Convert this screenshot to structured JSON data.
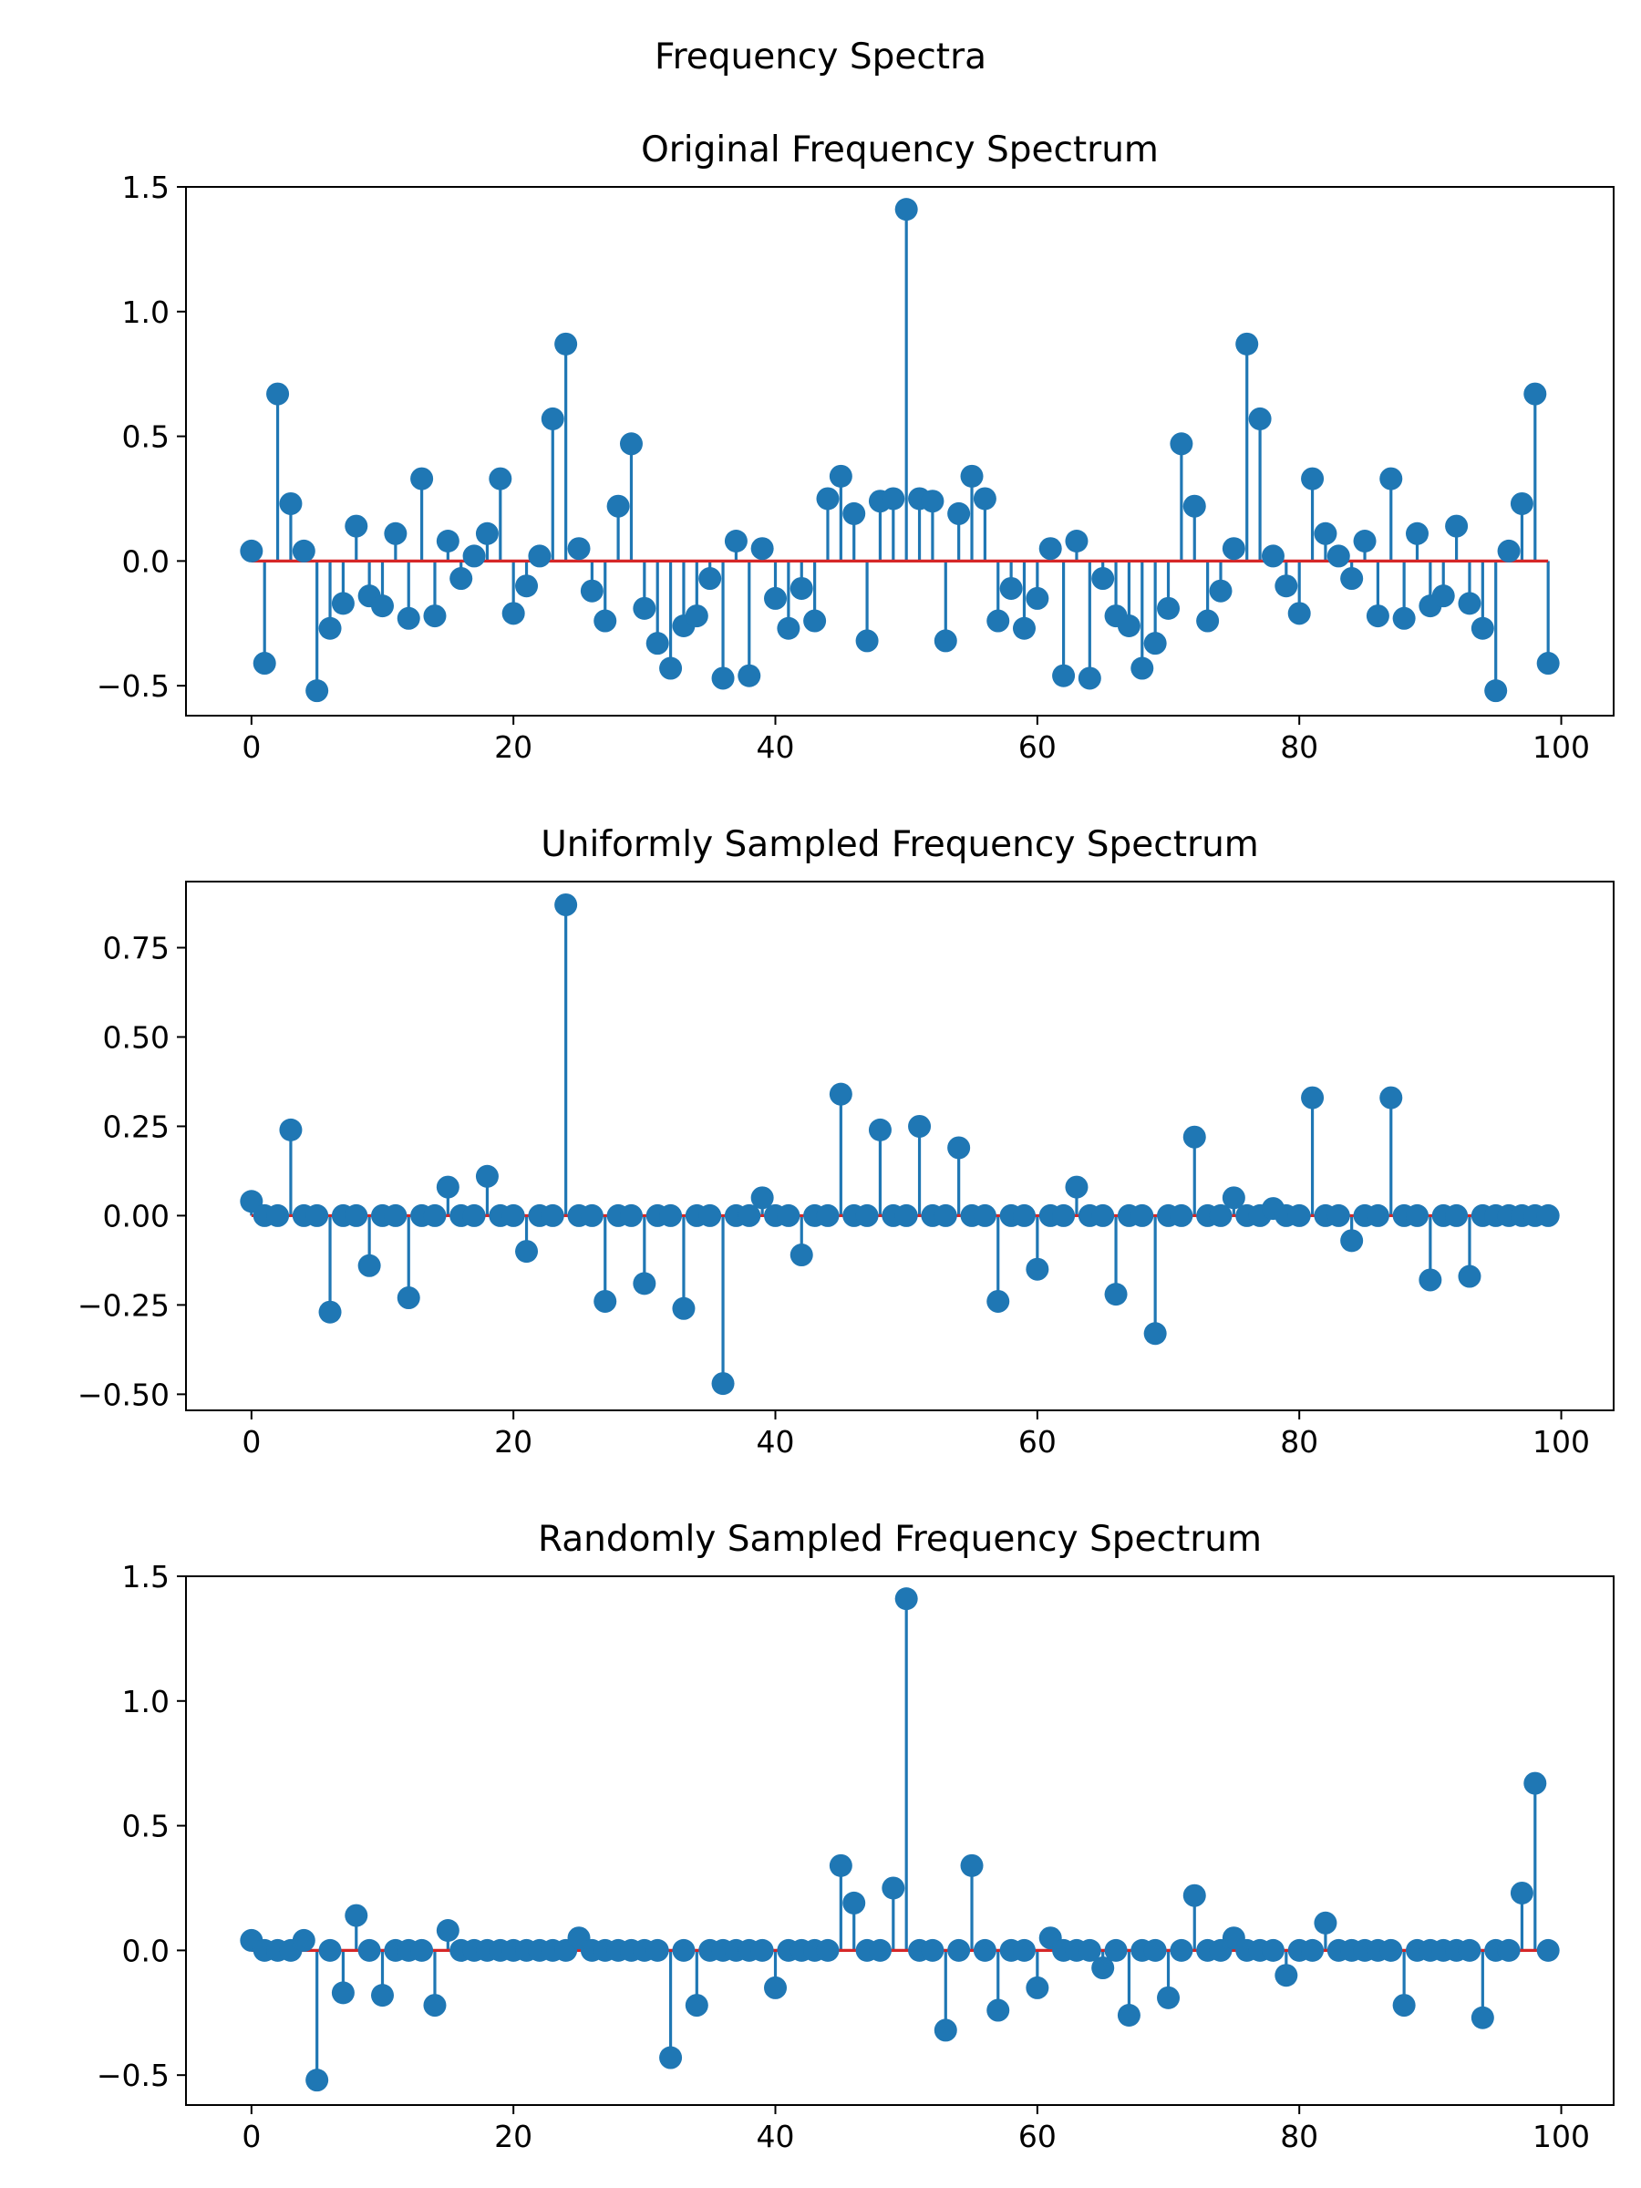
{
  "figure": {
    "suptitle": "Frequency Spectra"
  },
  "chart_data": [
    {
      "type": "stem",
      "title": "Original Frequency Spectrum",
      "xlabel": "",
      "ylabel": "",
      "xlim": [
        -5,
        104
      ],
      "ylim": [
        -0.62,
        1.5
      ],
      "xticks": [
        0,
        20,
        40,
        60,
        80,
        100
      ],
      "xtick_labels": [
        "0",
        "20",
        "40",
        "60",
        "80",
        "100"
      ],
      "yticks": [
        -0.5,
        0.0,
        0.5,
        1.0,
        1.5
      ],
      "ytick_labels": [
        "−0.5",
        "0.0",
        "0.5",
        "1.0",
        "1.5"
      ],
      "grid": false,
      "baseline": 0,
      "x": [
        0,
        1,
        2,
        3,
        4,
        5,
        6,
        7,
        8,
        9,
        10,
        11,
        12,
        13,
        14,
        15,
        16,
        17,
        18,
        19,
        20,
        21,
        22,
        23,
        24,
        25,
        26,
        27,
        28,
        29,
        30,
        31,
        32,
        33,
        34,
        35,
        36,
        37,
        38,
        39,
        40,
        41,
        42,
        43,
        44,
        45,
        46,
        47,
        48,
        49,
        50,
        51,
        52,
        53,
        54,
        55,
        56,
        57,
        58,
        59,
        60,
        61,
        62,
        63,
        64,
        65,
        66,
        67,
        68,
        69,
        70,
        71,
        72,
        73,
        74,
        75,
        76,
        77,
        78,
        79,
        80,
        81,
        82,
        83,
        84,
        85,
        86,
        87,
        88,
        89,
        90,
        91,
        92,
        93,
        94,
        95,
        96,
        97,
        98,
        99
      ],
      "values": [
        0.04,
        -0.41,
        0.67,
        0.23,
        0.04,
        -0.52,
        -0.27,
        -0.17,
        0.14,
        -0.14,
        -0.18,
        0.11,
        -0.23,
        0.33,
        -0.22,
        0.08,
        -0.07,
        0.02,
        0.11,
        0.33,
        -0.21,
        -0.1,
        0.02,
        0.57,
        0.87,
        0.05,
        -0.12,
        -0.24,
        0.22,
        0.47,
        -0.19,
        -0.33,
        -0.43,
        -0.26,
        -0.22,
        -0.07,
        -0.47,
        0.08,
        -0.46,
        0.05,
        -0.15,
        -0.27,
        -0.11,
        -0.24,
        0.25,
        0.34,
        0.19,
        -0.32,
        0.24,
        0.25,
        1.41,
        0.25,
        0.24,
        -0.32,
        0.19,
        0.34,
        0.25,
        -0.24,
        -0.11,
        -0.27,
        -0.15,
        0.05,
        -0.46,
        0.08,
        -0.47,
        -0.07,
        -0.22,
        -0.26,
        -0.43,
        -0.33,
        -0.19,
        0.47,
        0.22,
        -0.24,
        -0.12,
        0.05,
        0.87,
        0.57,
        0.02,
        -0.1,
        -0.21,
        0.33,
        0.11,
        0.02,
        -0.07,
        0.08,
        -0.22,
        0.33,
        -0.23,
        0.11,
        -0.18,
        -0.14,
        0.14,
        -0.17,
        -0.27,
        -0.52,
        0.04,
        0.23,
        0.67,
        -0.41
      ],
      "colors": {
        "stem": "#1f77b4",
        "marker": "#1f77b4",
        "baseline": "#d62728"
      }
    },
    {
      "type": "stem",
      "title": "Uniformly Sampled Frequency Spectrum",
      "xlabel": "",
      "ylabel": "",
      "xlim": [
        -5,
        104
      ],
      "ylim": [
        -0.545,
        0.935
      ],
      "xticks": [
        0,
        20,
        40,
        60,
        80,
        100
      ],
      "xtick_labels": [
        "0",
        "20",
        "40",
        "60",
        "80",
        "100"
      ],
      "yticks": [
        -0.5,
        -0.25,
        0.0,
        0.25,
        0.5,
        0.75
      ],
      "ytick_labels": [
        "−0.50",
        "−0.25",
        "0.00",
        "0.25",
        "0.50",
        "0.75"
      ],
      "grid": false,
      "baseline": 0,
      "x": [
        0,
        1,
        2,
        3,
        4,
        5,
        6,
        7,
        8,
        9,
        10,
        11,
        12,
        13,
        14,
        15,
        16,
        17,
        18,
        19,
        20,
        21,
        22,
        23,
        24,
        25,
        26,
        27,
        28,
        29,
        30,
        31,
        32,
        33,
        34,
        35,
        36,
        37,
        38,
        39,
        40,
        41,
        42,
        43,
        44,
        45,
        46,
        47,
        48,
        49,
        50,
        51,
        52,
        53,
        54,
        55,
        56,
        57,
        58,
        59,
        60,
        61,
        62,
        63,
        64,
        65,
        66,
        67,
        68,
        69,
        70,
        71,
        72,
        73,
        74,
        75,
        76,
        77,
        78,
        79,
        80,
        81,
        82,
        83,
        84,
        85,
        86,
        87,
        88,
        89,
        90,
        91,
        92,
        93,
        94,
        95,
        96,
        97,
        98,
        99
      ],
      "values": [
        0.04,
        0,
        0,
        0.24,
        0,
        0,
        -0.27,
        0,
        0,
        -0.14,
        0,
        0,
        -0.23,
        0,
        0,
        0.08,
        0,
        0,
        0.11,
        0,
        0,
        -0.1,
        0,
        0,
        0.87,
        0,
        0,
        -0.24,
        0,
        0,
        -0.19,
        0,
        0,
        -0.26,
        0,
        0,
        -0.47,
        0,
        0,
        0.05,
        0,
        0,
        -0.11,
        0,
        0,
        0.34,
        0,
        0,
        0.24,
        0,
        0,
        0.25,
        0,
        0,
        0.19,
        0,
        0,
        -0.24,
        0,
        0,
        -0.15,
        0,
        0,
        0.08,
        0,
        0,
        -0.22,
        0,
        0,
        -0.33,
        0,
        0,
        0.22,
        0,
        0,
        0.05,
        0,
        0,
        0.02,
        0,
        0,
        0.33,
        0,
        0,
        -0.07,
        0,
        0,
        0.33,
        0,
        0,
        -0.18,
        0,
        0,
        -0.17,
        0,
        0,
        0,
        0,
        0,
        0
      ],
      "colors": {
        "stem": "#1f77b4",
        "marker": "#1f77b4",
        "baseline": "#d62728"
      }
    },
    {
      "type": "stem",
      "title": "Randomly Sampled Frequency Spectrum",
      "xlabel": "",
      "ylabel": "",
      "xlim": [
        -5,
        104
      ],
      "ylim": [
        -0.62,
        1.5
      ],
      "xticks": [
        0,
        20,
        40,
        60,
        80,
        100
      ],
      "xtick_labels": [
        "0",
        "20",
        "40",
        "60",
        "80",
        "100"
      ],
      "yticks": [
        -0.5,
        0.0,
        0.5,
        1.0,
        1.5
      ],
      "ytick_labels": [
        "−0.5",
        "0.0",
        "0.5",
        "1.0",
        "1.5"
      ],
      "grid": false,
      "baseline": 0,
      "x": [
        0,
        1,
        2,
        3,
        4,
        5,
        6,
        7,
        8,
        9,
        10,
        11,
        12,
        13,
        14,
        15,
        16,
        17,
        18,
        19,
        20,
        21,
        22,
        23,
        24,
        25,
        26,
        27,
        28,
        29,
        30,
        31,
        32,
        33,
        34,
        35,
        36,
        37,
        38,
        39,
        40,
        41,
        42,
        43,
        44,
        45,
        46,
        47,
        48,
        49,
        50,
        51,
        52,
        53,
        54,
        55,
        56,
        57,
        58,
        59,
        60,
        61,
        62,
        63,
        64,
        65,
        66,
        67,
        68,
        69,
        70,
        71,
        72,
        73,
        74,
        75,
        76,
        77,
        78,
        79,
        80,
        81,
        82,
        83,
        84,
        85,
        86,
        87,
        88,
        89,
        90,
        91,
        92,
        93,
        94,
        95,
        96,
        97,
        98,
        99
      ],
      "values": [
        0.04,
        0,
        0,
        0,
        0.04,
        -0.52,
        0,
        -0.17,
        0.14,
        0,
        -0.18,
        0,
        0,
        0,
        -0.22,
        0.08,
        0,
        0,
        0,
        0,
        0,
        0,
        0,
        0,
        0,
        0.05,
        0,
        0,
        0,
        0,
        0,
        0,
        -0.43,
        0,
        -0.22,
        0,
        0,
        0,
        0,
        0,
        -0.15,
        0,
        0,
        0,
        0,
        0.34,
        0.19,
        0,
        0,
        0.25,
        1.41,
        0,
        0,
        -0.32,
        0,
        0.34,
        0,
        -0.24,
        0,
        0,
        -0.15,
        0.05,
        0,
        0,
        0,
        -0.07,
        0,
        -0.26,
        0,
        0,
        -0.19,
        0,
        0.22,
        0,
        0,
        0.05,
        0,
        0,
        0,
        -0.1,
        0,
        0,
        0.11,
        0,
        0,
        0,
        0,
        0,
        -0.22,
        0,
        0,
        0,
        0,
        0,
        -0.27,
        0,
        0,
        0.23,
        0.67,
        0
      ],
      "colors": {
        "stem": "#1f77b4",
        "marker": "#1f77b4",
        "baseline": "#d62728"
      }
    }
  ]
}
